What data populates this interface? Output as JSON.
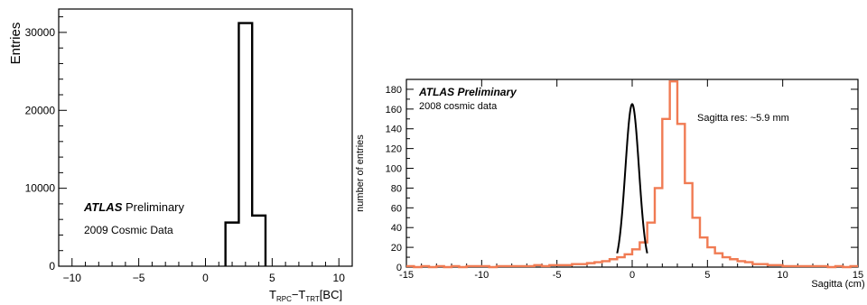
{
  "chart_data": [
    {
      "type": "histogram",
      "title": "",
      "xlabel_main": "T",
      "xlabel_sub1": "RPC",
      "xlabel_mid": "−T",
      "xlabel_sub2": "TRT",
      "xlabel_unit": "[BC]",
      "ylabel": "Entries",
      "xlim": [
        -11,
        11
      ],
      "ylim": [
        0,
        33000
      ],
      "x_ticks": [
        -10,
        -5,
        0,
        5,
        10
      ],
      "x_tick_labels": [
        "−10",
        "−5",
        "0",
        "5",
        "10"
      ],
      "y_ticks": [
        0,
        10000,
        20000,
        30000
      ],
      "y_tick_labels": [
        "0",
        "10000",
        "20000",
        "30000"
      ],
      "bins": [
        {
          "x0": 1.5,
          "x1": 2.5,
          "value": 5600
        },
        {
          "x0": 2.5,
          "x1": 3.5,
          "value": 31200
        },
        {
          "x0": 3.5,
          "x1": 4.5,
          "value": 6500
        }
      ],
      "line_color": "#000000",
      "annotations": {
        "atlas": "ATLAS",
        "preliminary": "Preliminary",
        "dataset": "2009 Cosmic Data"
      }
    },
    {
      "type": "histogram",
      "title": "",
      "xlabel": "Sagitta (cm)",
      "ylabel": "number of entries",
      "xlim": [
        -15,
        15
      ],
      "ylim": [
        0,
        190
      ],
      "x_ticks": [
        -15,
        -10,
        -5,
        0,
        5,
        10,
        15
      ],
      "x_tick_labels": [
        "-15",
        "-10",
        "-5",
        "0",
        "5",
        "10",
        "15"
      ],
      "y_ticks": [
        0,
        20,
        40,
        60,
        80,
        100,
        120,
        140,
        160,
        180
      ],
      "y_tick_labels": [
        "0",
        "20",
        "40",
        "60",
        "80",
        "100",
        "120",
        "140",
        "160",
        "180"
      ],
      "bin_width": 0.5,
      "x_start": -15,
      "counts": [
        1,
        0,
        1,
        0,
        1,
        0,
        1,
        0,
        1,
        1,
        1,
        0,
        1,
        1,
        1,
        1,
        1,
        2,
        1,
        2,
        2,
        2,
        3,
        3,
        4,
        5,
        6,
        8,
        10,
        13,
        18,
        25,
        45,
        80,
        150,
        188,
        145,
        85,
        50,
        30,
        20,
        14,
        10,
        8,
        6,
        5,
        3,
        3,
        2,
        2,
        1,
        1,
        1,
        1,
        1,
        1,
        0,
        1,
        0,
        1
      ],
      "hist_color": "#f07b53",
      "fit": {
        "type": "gaussian",
        "mean": 0.0,
        "sigma": 0.45,
        "amplitude": 165,
        "range": [
          -1.0,
          1.0
        ],
        "color": "#000000"
      },
      "annotations": {
        "atlas": "ATLAS Preliminary",
        "dataset": "2008 cosmic data",
        "resolution": "Sagitta res: ~5.9 mm"
      }
    }
  ]
}
